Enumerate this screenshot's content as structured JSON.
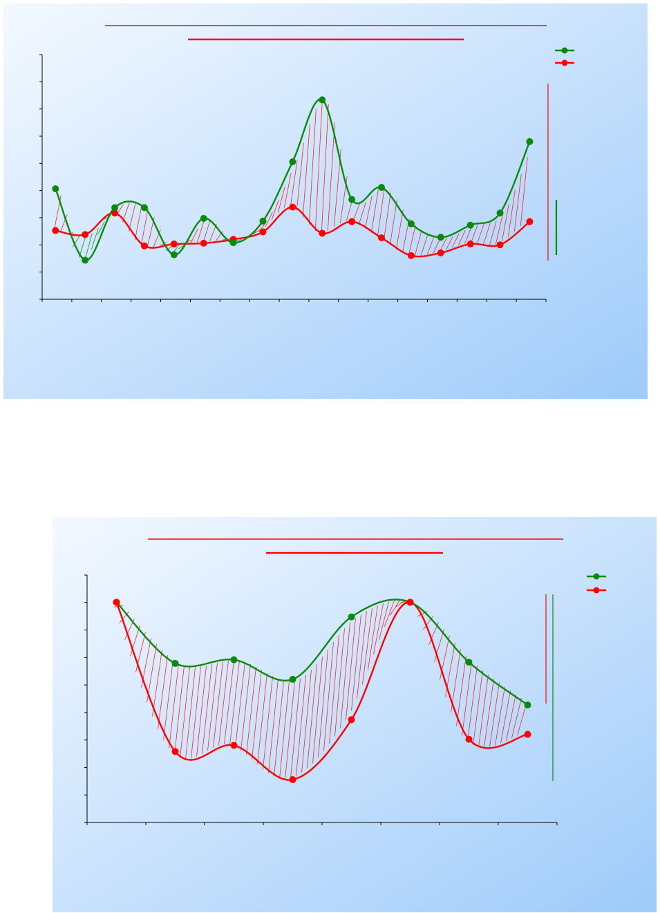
{
  "chart_data": [
    {
      "type": "line",
      "title": "",
      "subtitle": "",
      "xlabel": "",
      "ylabel": "",
      "x": [
        1,
        2,
        3,
        4,
        5,
        6,
        7,
        8,
        9,
        10,
        11,
        12,
        13,
        14,
        15,
        16,
        17
      ],
      "xlim": [
        0.55,
        17.55
      ],
      "ylim": [
        0,
        9
      ],
      "yticks": 9,
      "xticks": 17,
      "grid": false,
      "legend": "top-right",
      "fill_between": "hatched",
      "series": [
        {
          "name": "",
          "color": "#0a8a0a",
          "values": [
            4.1,
            1.45,
            3.4,
            3.4,
            1.65,
            3.0,
            2.1,
            2.9,
            5.1,
            7.4,
            3.7,
            4.15,
            2.8,
            2.3,
            2.75,
            3.2,
            5.85
          ]
        },
        {
          "name": "",
          "color": "#ff0000",
          "values": [
            2.55,
            2.4,
            3.2,
            1.98,
            2.05,
            2.08,
            2.22,
            2.5,
            3.42,
            2.45,
            2.88,
            2.28,
            1.62,
            1.72,
            2.05,
            2.02,
            2.88
          ]
        }
      ]
    },
    {
      "type": "line",
      "title": "",
      "subtitle": "",
      "xlabel": "",
      "ylabel": "",
      "x": [
        1,
        2,
        3,
        4,
        5,
        6,
        7,
        8
      ],
      "xlim": [
        0.5,
        8.5
      ],
      "ylim": [
        0,
        9.8
      ],
      "yticks": 9,
      "xticks": 8,
      "grid": false,
      "legend": "top-right",
      "fill_between": "hatched",
      "series": [
        {
          "name": "",
          "color": "#0a8a0a",
          "values": [
            9.0,
            6.5,
            6.65,
            5.85,
            8.4,
            9.0,
            6.55,
            4.8
          ]
        },
        {
          "name": "",
          "color": "#ff0000",
          "values": [
            9.0,
            2.9,
            3.15,
            1.75,
            4.2,
            9.0,
            3.4,
            3.6
          ]
        }
      ]
    }
  ]
}
